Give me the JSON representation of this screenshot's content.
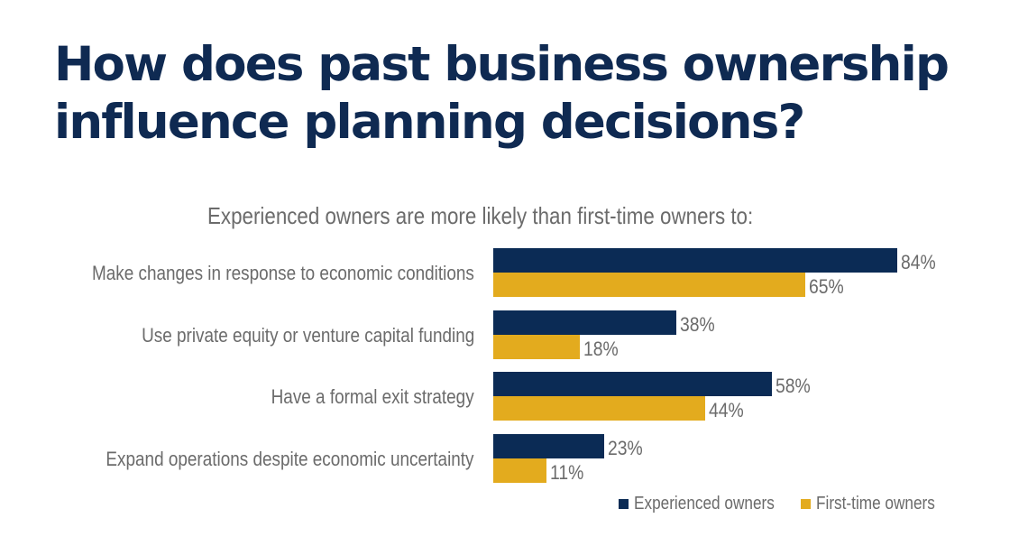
{
  "title_lines": [
    "How does past business ownership",
    "influence planning decisions?"
  ],
  "subtitle": "Experienced owners are more likely than first-time owners to:",
  "legend": [
    {
      "label": "Experienced owners",
      "color": "#0b2b55"
    },
    {
      "label": "First-time owners",
      "color": "#e3ab1e"
    }
  ],
  "rows": [
    {
      "label": "Make changes in response to economic conditions",
      "experienced": 84,
      "first_time": 65,
      "experienced_text": "84%",
      "first_time_text": "65%"
    },
    {
      "label": "Use private equity or venture capital funding",
      "experienced": 38,
      "first_time": 18,
      "experienced_text": "38%",
      "first_time_text": "18%"
    },
    {
      "label": "Have a formal exit strategy",
      "experienced": 58,
      "first_time": 44,
      "experienced_text": "58%",
      "first_time_text": "44%"
    },
    {
      "label": "Expand operations despite economic uncertainty",
      "experienced": 23,
      "first_time": 11,
      "experienced_text": "23%",
      "first_time_text": "11%"
    }
  ],
  "chart_data": {
    "type": "bar",
    "orientation": "horizontal",
    "title": "How does past business ownership influence planning decisions?",
    "subtitle": "Experienced owners are more likely than first-time owners to:",
    "categories": [
      "Make changes in response to economic conditions",
      "Use private equity or venture capital funding",
      "Have a formal exit strategy",
      "Expand operations despite economic uncertainty"
    ],
    "series": [
      {
        "name": "Experienced owners",
        "color": "#0b2b55",
        "values": [
          84,
          38,
          58,
          23
        ]
      },
      {
        "name": "First-time owners",
        "color": "#e3ab1e",
        "values": [
          65,
          18,
          44,
          11
        ]
      }
    ],
    "value_format": "percent",
    "xlabel": "",
    "ylabel": "",
    "xlim": [
      0,
      100
    ],
    "grid": false,
    "axes_visible": false,
    "data_labels": true,
    "legend_position": "bottom-right"
  }
}
